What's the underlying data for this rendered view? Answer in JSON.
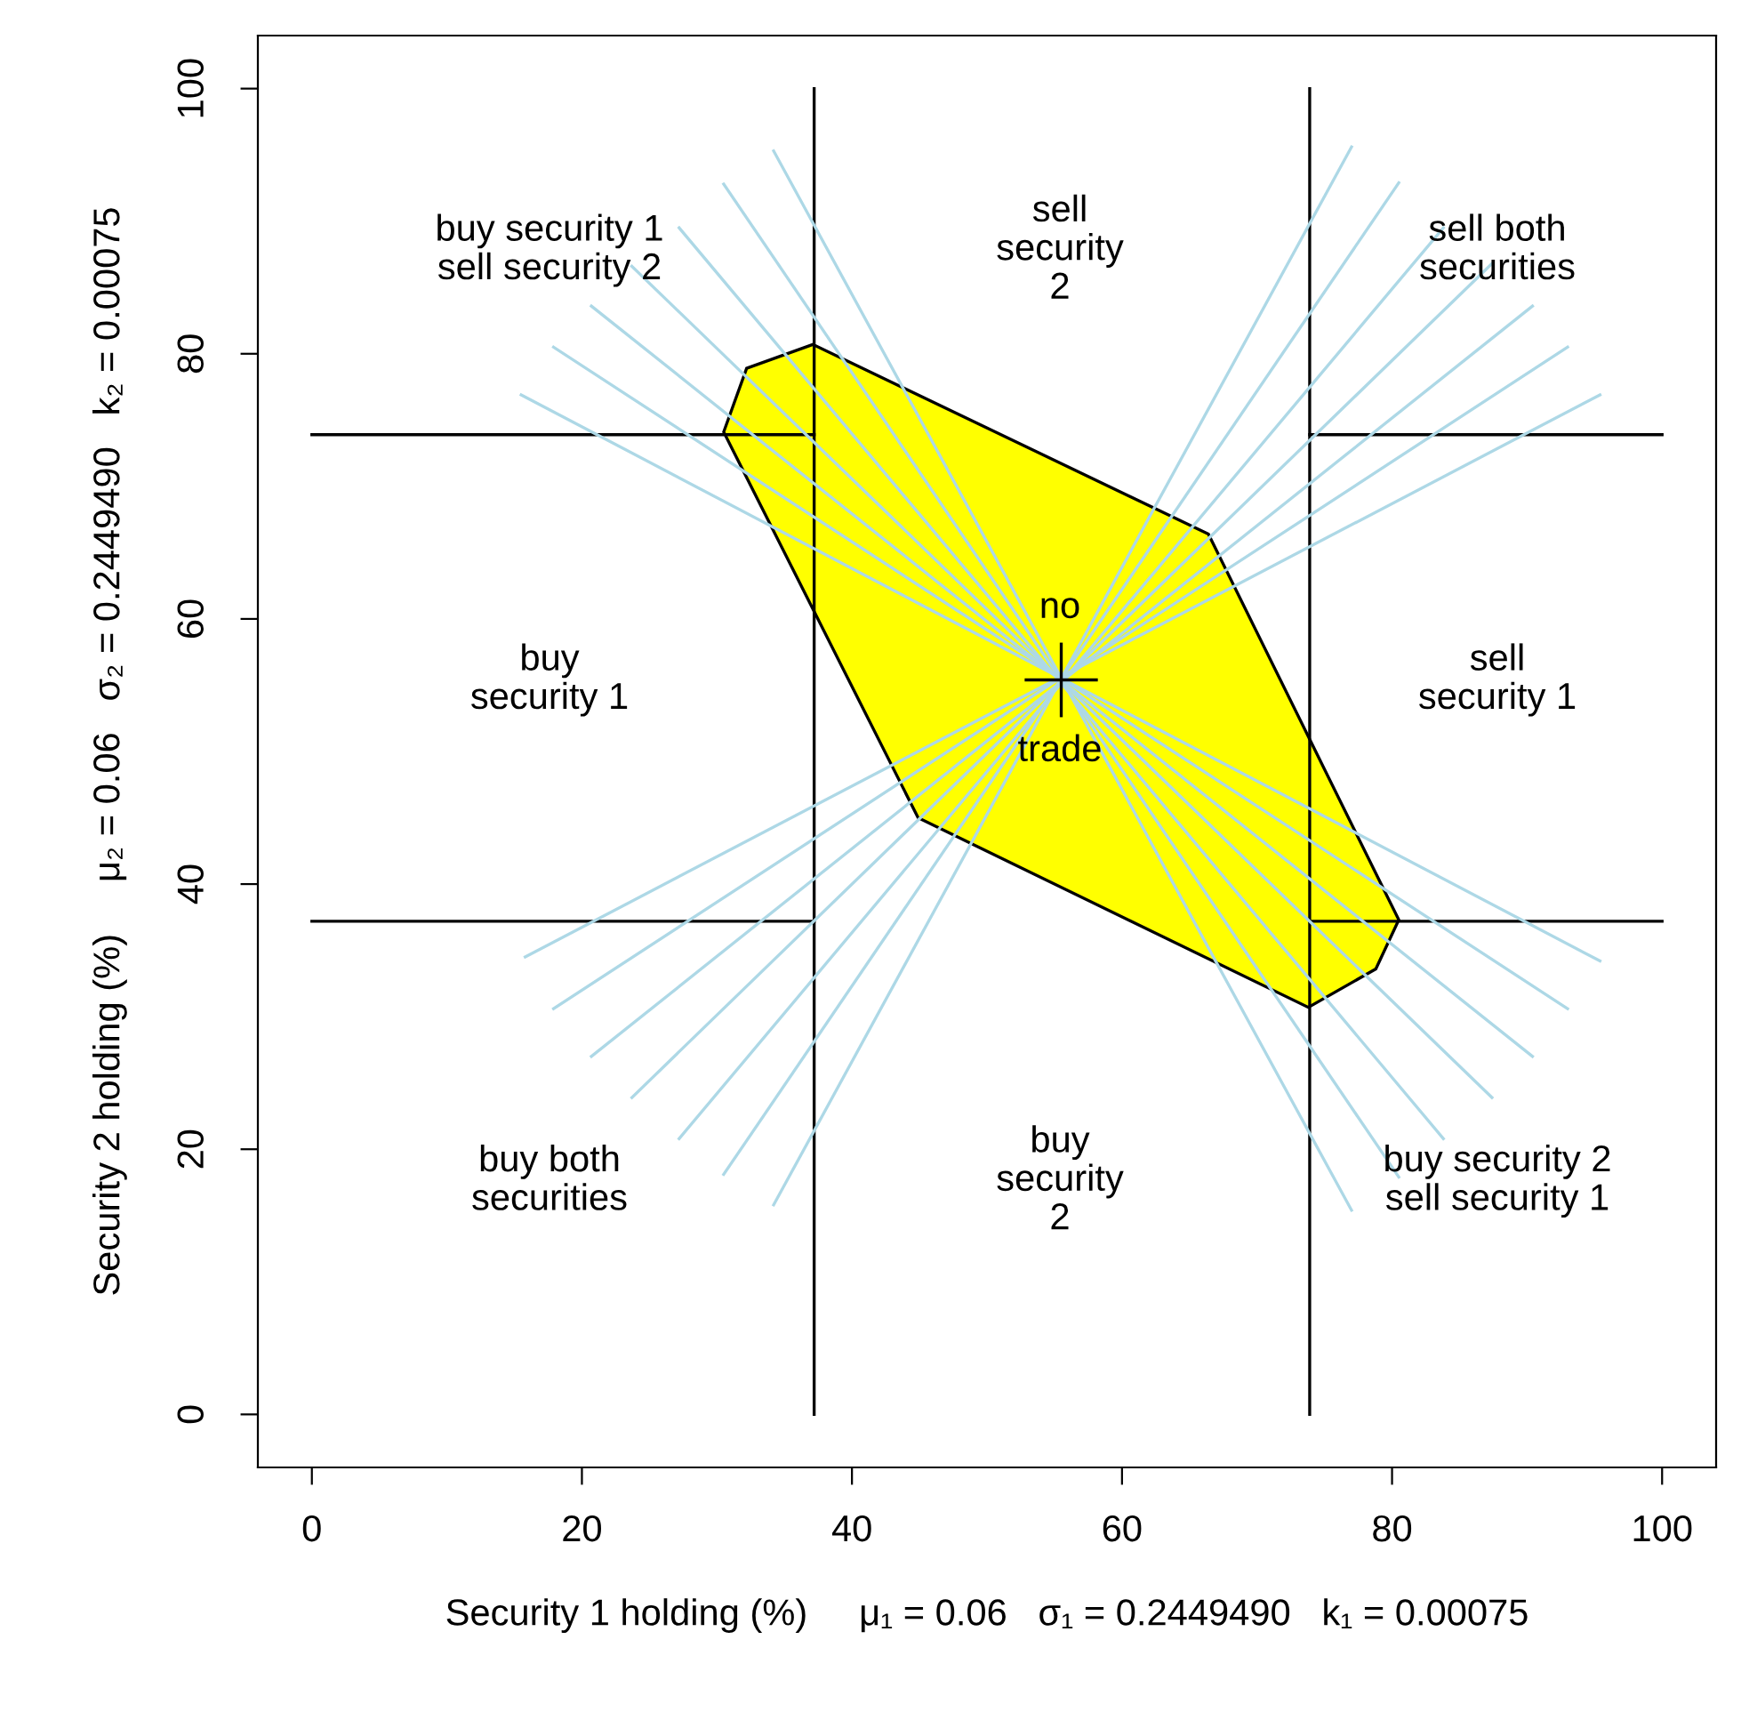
{
  "chart_data": {
    "type": "line",
    "xlabel": "Security 1 holding (%)     μ₁ = 0.06   σ₁ = 0.2449490   k₁ = 0.00075",
    "ylabel": "Security 2 holding (%)     μ₂ = 0.06   σ₂ = 0.2449490   k₂ = 0.00075",
    "xlim": [
      -4,
      104
    ],
    "ylim": [
      -4,
      104
    ],
    "xticks": [
      0,
      20,
      40,
      60,
      80,
      100
    ],
    "yticks": [
      0,
      20,
      40,
      60,
      80,
      100
    ],
    "grid": false,
    "legend": false,
    "series": [
      {
        "type": "area",
        "color": "#ffff00",
        "x": [
          30.5,
          32.2,
          37.1,
          66.4,
          80.5,
          78.8,
          73.8,
          44.9
        ],
        "values": [
          74.1,
          78.9,
          80.7,
          66.4,
          37.3,
          33.6,
          30.7,
          45.0
        ]
      },
      {
        "color": "#000000",
        "x": [
          37.2,
          37.2
        ],
        "values": [
          0,
          100
        ]
      },
      {
        "color": "#000000",
        "x": [
          73.9,
          73.9
        ],
        "values": [
          0,
          100
        ]
      },
      {
        "color": "#000000",
        "x": [
          0,
          37.2
        ],
        "values": [
          73.9,
          73.9
        ]
      },
      {
        "color": "#000000",
        "x": [
          73.9,
          100
        ],
        "values": [
          73.9,
          73.9
        ]
      },
      {
        "color": "#000000",
        "x": [
          0,
          37.2
        ],
        "values": [
          37.2,
          37.2
        ]
      },
      {
        "color": "#000000",
        "x": [
          73.9,
          100
        ],
        "values": [
          37.2,
          37.2
        ]
      },
      {
        "color": "#add8e6",
        "x": [
          15.5,
          95.4
        ],
        "values": [
          76.9,
          34.2
        ]
      },
      {
        "color": "#add8e6",
        "x": [
          17.9,
          93
        ],
        "values": [
          80.5,
          30.6
        ]
      },
      {
        "color": "#add8e6",
        "x": [
          20.7,
          90.4
        ],
        "values": [
          83.6,
          27
        ]
      },
      {
        "color": "#add8e6",
        "x": [
          23.7,
          87.4
        ],
        "values": [
          86.6,
          23.9
        ]
      },
      {
        "color": "#add8e6",
        "x": [
          27.2,
          83.8
        ],
        "values": [
          89.5,
          20.8
        ]
      },
      {
        "color": "#add8e6",
        "x": [
          30.5,
          80.5
        ],
        "values": [
          92.8,
          17.9
        ]
      },
      {
        "color": "#add8e6",
        "x": [
          34.2,
          77
        ],
        "values": [
          95.3,
          15.4
        ]
      },
      {
        "color": "#add8e6",
        "x": [
          34.2,
          77
        ],
        "values": [
          15.8,
          95.6
        ]
      },
      {
        "color": "#add8e6",
        "x": [
          30.5,
          80.5
        ],
        "values": [
          18.1,
          92.9
        ]
      },
      {
        "color": "#add8e6",
        "x": [
          27.2,
          83.8
        ],
        "values": [
          20.8,
          89.5
        ]
      },
      {
        "color": "#add8e6",
        "x": [
          23.7,
          87.4
        ],
        "values": [
          23.9,
          86.8
        ]
      },
      {
        "color": "#add8e6",
        "x": [
          20.7,
          90.4
        ],
        "values": [
          27,
          83.6
        ]
      },
      {
        "color": "#add8e6",
        "x": [
          17.9,
          93
        ],
        "values": [
          30.6,
          80.5
        ]
      },
      {
        "color": "#add8e6",
        "x": [
          15.8,
          95.4
        ],
        "values": [
          34.5,
          76.9
        ]
      },
      {
        "color": "#000000",
        "x": [
          52.9,
          58.1
        ],
        "values": [
          55.4,
          55.4
        ]
      },
      {
        "color": "#000000",
        "x": [
          55.5,
          55.5
        ],
        "values": [
          52.7,
          58.1
        ]
      }
    ],
    "annotations": [
      "buy security 1\nsell security 2",
      "sell\nsecurity\n2",
      "sell both\nsecurities",
      "buy\nsecurity 1",
      "no",
      "trade",
      "sell\nsecurity 1",
      "buy both\nsecurities",
      "buy\nsecurity\n2",
      "buy security 2\nsell security 1"
    ]
  }
}
